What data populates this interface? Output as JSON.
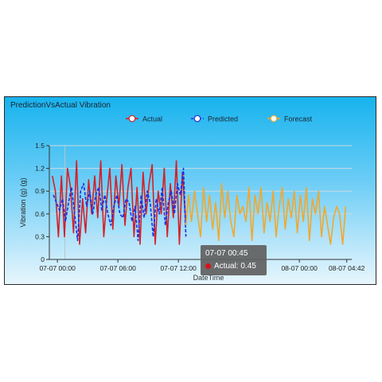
{
  "chart_data": {
    "type": "line",
    "title": "PredictionVsActual Vibration",
    "xlabel": "DateTime",
    "ylabel": "Vibration (g) (g)",
    "ylim": [
      0,
      1.5
    ],
    "y_ticks": [
      "0",
      "0.3",
      "0.6",
      "0.9",
      "1.2",
      "1.5"
    ],
    "x_ticks": [
      "07-07 00:00",
      "07-07 06:00",
      "07-07 12:00",
      "08-07 00:00",
      "08-07 04:42"
    ],
    "x_tick_hours": [
      0,
      6,
      12,
      24,
      28.7
    ],
    "x_range_hours": [
      -0.8,
      29.2
    ],
    "grid": true,
    "legend": {
      "position": "top",
      "entries": [
        "Actual",
        "Predicted",
        "Forecast"
      ]
    },
    "series": [
      {
        "name": "Actual",
        "color": "#d42029",
        "style": "solid",
        "x_hours": [
          -0.5,
          -0.2,
          0.1,
          0.4,
          0.7,
          1.0,
          1.3,
          1.6,
          1.9,
          2.2,
          2.5,
          2.8,
          3.1,
          3.4,
          3.7,
          4.0,
          4.3,
          4.6,
          4.9,
          5.2,
          5.5,
          5.8,
          6.1,
          6.4,
          6.7,
          7.0,
          7.3,
          7.6,
          7.9,
          8.2,
          8.5,
          8.8,
          9.1,
          9.4,
          9.7,
          10.0,
          10.3,
          10.6,
          10.9,
          11.2,
          11.5,
          11.8,
          12.1,
          12.4,
          12.75
        ],
        "y": [
          1.1,
          0.9,
          0.3,
          1.1,
          0.3,
          1.2,
          0.95,
          0.35,
          1.3,
          0.2,
          0.8,
          0.35,
          1.05,
          0.6,
          1.1,
          0.55,
          1.3,
          0.3,
          0.8,
          1.2,
          0.4,
          1.1,
          0.7,
          1.25,
          0.45,
          0.95,
          1.2,
          0.3,
          0.95,
          0.2,
          1.15,
          0.6,
          1.0,
          1.25,
          0.2,
          0.9,
          0.6,
          1.2,
          0.3,
          1.0,
          0.55,
          1.3,
          0.2,
          1.15,
          0.45
        ]
      },
      {
        "name": "Predicted",
        "color": "#1d2ee0",
        "style": "dashed",
        "x_hours": [
          -0.4,
          -0.1,
          0.2,
          0.5,
          0.8,
          1.1,
          1.4,
          1.7,
          2.0,
          2.3,
          2.6,
          2.9,
          3.2,
          3.5,
          3.8,
          4.1,
          4.4,
          4.7,
          5.0,
          5.3,
          5.6,
          5.9,
          6.2,
          6.5,
          6.8,
          7.1,
          7.4,
          7.7,
          8.0,
          8.3,
          8.6,
          8.9,
          9.2,
          9.5,
          9.8,
          10.1,
          10.4,
          10.7,
          11.0,
          11.3,
          11.6,
          11.9,
          12.2,
          12.5,
          12.75
        ],
        "y": [
          0.85,
          0.75,
          0.65,
          0.8,
          0.5,
          0.75,
          0.95,
          0.6,
          0.25,
          0.9,
          1.0,
          0.7,
          0.9,
          0.6,
          0.85,
          0.95,
          0.65,
          0.85,
          0.6,
          0.45,
          0.7,
          0.85,
          0.6,
          0.55,
          0.8,
          0.75,
          0.5,
          0.7,
          0.25,
          0.85,
          0.55,
          0.9,
          0.75,
          0.3,
          0.8,
          0.6,
          0.95,
          0.45,
          0.75,
          0.9,
          0.6,
          1.0,
          0.85,
          1.2,
          0.3
        ]
      },
      {
        "name": "Forecast",
        "color": "#f0a830",
        "style": "solid",
        "x_hours": [
          12.75,
          13.0,
          13.3,
          13.6,
          13.9,
          14.2,
          14.5,
          14.8,
          15.1,
          15.4,
          15.7,
          16.0,
          16.3,
          16.6,
          16.9,
          17.2,
          17.5,
          17.8,
          18.1,
          18.4,
          18.7,
          19.0,
          19.3,
          19.6,
          19.9,
          20.2,
          20.5,
          20.8,
          21.1,
          21.4,
          21.7,
          22.0,
          22.3,
          22.6,
          22.9,
          23.2,
          23.5,
          23.8,
          24.1,
          24.4,
          24.7,
          25.0,
          25.3,
          25.6,
          25.9,
          26.2,
          26.5,
          26.8,
          27.1,
          27.4,
          27.7,
          28.0,
          28.3,
          28.6
        ],
        "y": [
          0.45,
          0.85,
          0.5,
          0.9,
          0.6,
          0.3,
          0.95,
          0.5,
          0.85,
          0.4,
          0.75,
          0.25,
          1.0,
          0.55,
          0.9,
          0.5,
          0.3,
          0.85,
          0.6,
          0.7,
          0.5,
          0.95,
          0.25,
          0.85,
          0.6,
          0.95,
          0.35,
          0.75,
          0.5,
          0.9,
          0.3,
          0.7,
          0.95,
          0.4,
          0.8,
          0.55,
          0.9,
          0.35,
          0.85,
          0.5,
          0.95,
          0.25,
          0.8,
          0.6,
          0.9,
          0.3,
          0.7,
          0.45,
          0.2,
          0.55,
          0.7,
          0.6,
          0.2,
          0.7
        ]
      }
    ],
    "cursor_x_hours": 0.75,
    "tooltip": {
      "time": "07-07 00:45",
      "label": "Actual: 0.45",
      "dot_color": "#d9141a"
    }
  }
}
